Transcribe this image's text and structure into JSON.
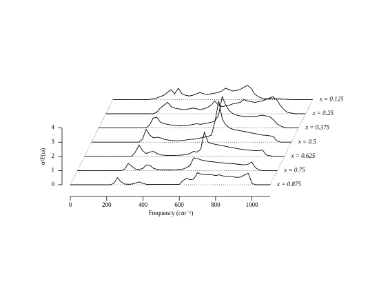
{
  "chart_data": {
    "type": "waterfall",
    "xlabel": "Frequency (cm⁻¹)",
    "ylabel": "α²F(ω)",
    "xlim": [
      0,
      1100
    ],
    "xticks": [
      0,
      200,
      400,
      600,
      800,
      1000
    ],
    "ylim": [
      0,
      4
    ],
    "yticks": [
      0,
      1,
      2,
      3,
      4
    ],
    "x": [
      0,
      20,
      40,
      60,
      80,
      100,
      120,
      140,
      160,
      180,
      200,
      220,
      240,
      260,
      280,
      300,
      320,
      340,
      360,
      380,
      400,
      420,
      440,
      460,
      480,
      500,
      520,
      540,
      560,
      580,
      600,
      620,
      640,
      660,
      680,
      700,
      720,
      740,
      760,
      780,
      800,
      820,
      840,
      860,
      880,
      900,
      920,
      940,
      960,
      980,
      1000,
      1020,
      1040,
      1060,
      1080,
      1100
    ],
    "series": [
      {
        "name": "x = 0.125",
        "color": "#000000",
        "values": [
          0,
          0,
          0,
          0,
          0,
          0,
          0,
          0,
          0,
          0,
          0,
          0.05,
          0.1,
          0.2,
          0.3,
          0.5,
          0.7,
          0.4,
          0.8,
          0.4,
          0.3,
          0.25,
          0.3,
          0.4,
          0.5,
          0.4,
          0.35,
          0.4,
          0.45,
          0.5,
          0.6,
          0.8,
          0.7,
          0.6,
          0.65,
          0.7,
          0.85,
          1.0,
          0.8,
          0.4,
          0.2,
          0.1,
          0.05,
          0.05,
          0.05,
          0.05,
          0.05,
          0.03,
          0.02,
          0,
          0,
          0,
          0,
          0,
          0,
          0
        ]
      },
      {
        "name": "x = 0.25",
        "color": "#000000",
        "values": [
          0,
          0,
          0,
          0,
          0,
          0,
          0,
          0,
          0,
          0,
          0,
          0,
          0,
          0,
          0.1,
          0.4,
          0.6,
          0.8,
          0.5,
          0.4,
          0.35,
          0.3,
          0.3,
          0.35,
          0.4,
          0.35,
          0.3,
          0.35,
          0.45,
          0.6,
          0.9,
          0.6,
          0.5,
          0.55,
          0.6,
          0.7,
          0.75,
          0.8,
          1.0,
          0.9,
          0.85,
          0.8,
          0.85,
          0.9,
          1.0,
          1.1,
          1.2,
          1.0,
          0.6,
          0.3,
          0.1,
          0.05,
          0,
          0,
          0,
          0
        ]
      },
      {
        "name": "x = 0.375",
        "color": "#000000",
        "values": [
          0,
          0,
          0,
          0,
          0,
          0,
          0,
          0,
          0,
          0,
          0,
          0,
          0,
          0,
          0.2,
          0.7,
          0.75,
          0.4,
          0.3,
          0.25,
          0.2,
          0.18,
          0.15,
          0.15,
          0.18,
          0.2,
          0.25,
          0.3,
          0.25,
          0.3,
          0.35,
          0.4,
          0.5,
          0.9,
          2.2,
          1.6,
          1.2,
          1.0,
          0.9,
          0.85,
          0.8,
          0.8,
          0.8,
          0.8,
          0.85,
          0.9,
          0.85,
          0.8,
          0.6,
          0.3,
          0.15,
          0.05,
          0,
          0,
          0,
          0
        ]
      },
      {
        "name": "x = 0.5",
        "color": "#000000",
        "values": [
          0,
          0,
          0,
          0,
          0,
          0,
          0,
          0,
          0,
          0,
          0,
          0,
          0,
          0,
          0.2,
          0.9,
          0.5,
          0.3,
          0.35,
          0.3,
          0.2,
          0.15,
          0.12,
          0.1,
          0.1,
          0.12,
          0.15,
          0.2,
          0.2,
          0.25,
          0.3,
          0.35,
          0.4,
          0.5,
          1.5,
          2.9,
          1.6,
          1.2,
          1.0,
          0.9,
          0.85,
          0.8,
          0.75,
          0.7,
          0.65,
          0.6,
          0.55,
          0.5,
          0.48,
          0.45,
          0.4,
          0.1,
          0,
          0,
          0,
          0
        ]
      },
      {
        "name": "x = 0.625",
        "color": "#000000",
        "values": [
          0,
          0,
          0,
          0,
          0,
          0,
          0,
          0,
          0,
          0,
          0,
          0,
          0,
          0,
          0.3,
          0.8,
          0.4,
          0.2,
          0.3,
          0.35,
          0.2,
          0.1,
          0.08,
          0.06,
          0.06,
          0.07,
          0.08,
          0.1,
          0.12,
          0.2,
          0.35,
          0.3,
          0.5,
          1.7,
          1.0,
          0.9,
          0.85,
          0.8,
          0.75,
          0.7,
          0.65,
          0.6,
          0.55,
          0.5,
          0.48,
          0.45,
          0.42,
          0.4,
          0.4,
          0.45,
          0.1,
          0.05,
          0,
          0,
          0,
          0
        ]
      },
      {
        "name": "x = 0.75",
        "color": "#000000",
        "values": [
          0,
          0,
          0,
          0,
          0,
          0,
          0,
          0,
          0,
          0,
          0,
          0,
          0,
          0.1,
          0.5,
          0.3,
          0.1,
          0.08,
          0.15,
          0.4,
          0.35,
          0.15,
          0.08,
          0.05,
          0.05,
          0.05,
          0.05,
          0.06,
          0.08,
          0.1,
          0.2,
          0.35,
          0.9,
          0.85,
          0.75,
          0.7,
          0.65,
          0.62,
          0.6,
          0.55,
          0.55,
          0.5,
          0.5,
          0.48,
          0.45,
          0.42,
          0.4,
          0.45,
          0.6,
          0.2,
          0.05,
          0,
          0,
          0,
          0,
          0
        ]
      },
      {
        "name": "x = 0.875",
        "color": "#000000",
        "values": [
          0,
          0,
          0,
          0,
          0,
          0,
          0,
          0,
          0,
          0,
          0,
          0,
          0.1,
          0.5,
          0.2,
          0.05,
          0.03,
          0.05,
          0.12,
          0.2,
          0.1,
          0.03,
          0.02,
          0.02,
          0.02,
          0.02,
          0.02,
          0.02,
          0.02,
          0.02,
          0.02,
          0.3,
          0.45,
          0.35,
          0.4,
          0.85,
          0.75,
          0.72,
          0.7,
          0.7,
          0.65,
          0.7,
          0.62,
          0.6,
          0.58,
          0.55,
          0.52,
          0.55,
          0.7,
          0.8,
          0.1,
          0,
          0,
          0,
          0,
          0
        ]
      }
    ]
  }
}
